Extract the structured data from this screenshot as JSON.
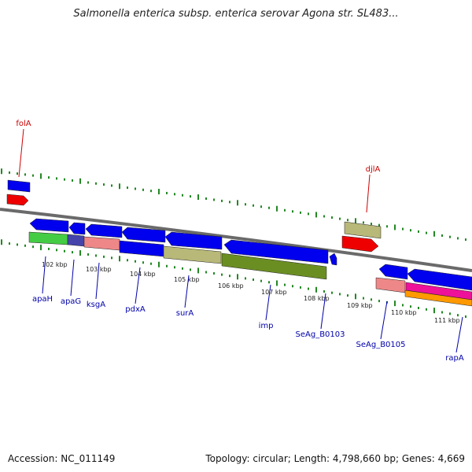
{
  "header": {
    "title": "Salmonella enterica subsp. enterica serovar Agona str. SL483..."
  },
  "footer": {
    "accession": "Accession: NC_011149",
    "summary": "Topology: circular; Length: 4,798,660 bp; Genes: 4,669"
  },
  "colors": {
    "blue": "#0000ee",
    "red": "#ee0000",
    "khaki": "#b8b878",
    "green": "#44cc44",
    "navy": "#4444aa",
    "salmon": "#ee8888",
    "olive": "#6b8e23",
    "magenta": "#ee1199",
    "orange": "#ff9900",
    "backbone": "#808080",
    "tickmark": "#228822",
    "label_red": "#cc0000",
    "label_blue": "#0000aa"
  },
  "ticks": [
    "102 kbp",
    "103 kbp",
    "104 kbp",
    "105 kbp",
    "106 kbp",
    "107 kbp",
    "108 kbp",
    "109 kbp",
    "110 kbp",
    "111 kbp"
  ],
  "genes_top": [
    {
      "name": "folA",
      "color": "label_red"
    },
    {
      "name": "djlA",
      "color": "label_red"
    }
  ],
  "genes_bottom": [
    {
      "name": "apaH"
    },
    {
      "name": "apaG"
    },
    {
      "name": "ksgA"
    },
    {
      "name": "pdxA"
    },
    {
      "name": "surA"
    },
    {
      "name": "imp"
    },
    {
      "name": "SeAg_B0103"
    },
    {
      "name": "SeAg_B0105"
    },
    {
      "name": "rapA"
    }
  ]
}
